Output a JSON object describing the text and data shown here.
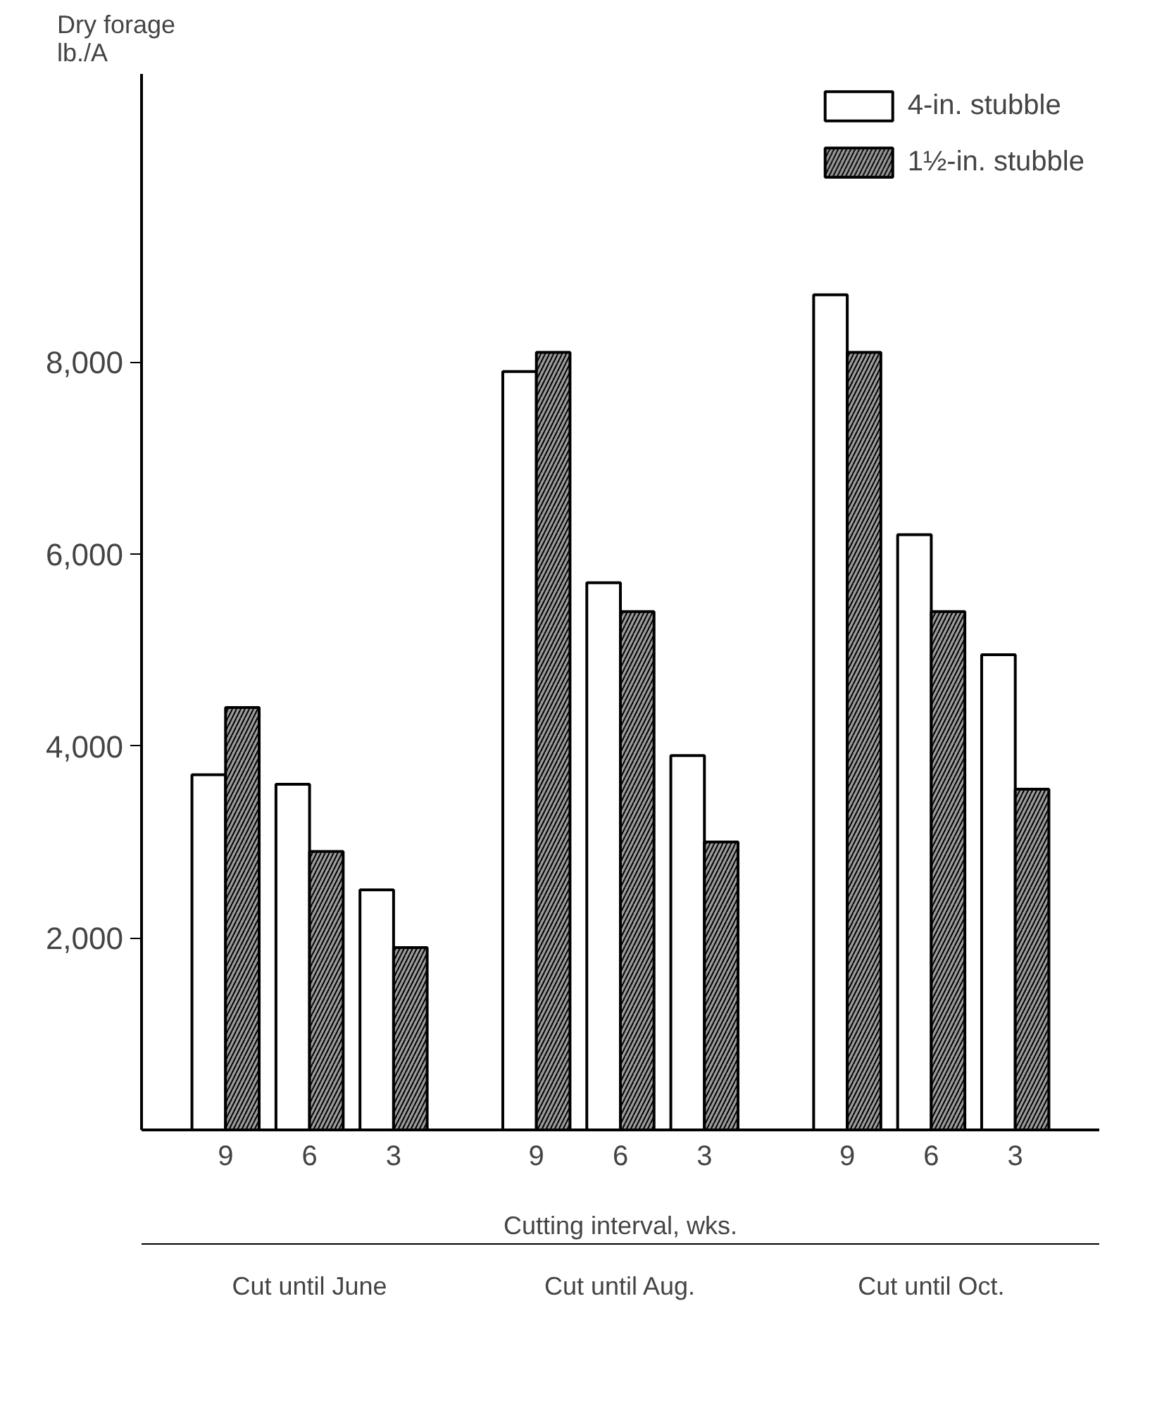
{
  "chart_data": {
    "type": "bar",
    "categories": [
      "9",
      "6",
      "3",
      "9",
      "6",
      "3",
      "9",
      "6",
      "3"
    ],
    "series": [
      {
        "name": "4-in. stubble",
        "color": "#ffffff",
        "values": [
          3700,
          3600,
          2500,
          7900,
          5700,
          3900,
          8700,
          6200,
          4950
        ]
      },
      {
        "name": "1½-in. stubble",
        "color": "#9a9a9a",
        "values": [
          4400,
          2900,
          1900,
          8100,
          5400,
          3000,
          8100,
          5400,
          3550
        ]
      }
    ],
    "ylabel": "Dry forage\nlb./A",
    "xlabel": "Cutting interval, wks.",
    "annotations": [
      "Cut until June",
      "Cut until Aug.",
      "Cut until Oct."
    ],
    "ylim": [
      0,
      11000
    ],
    "yticks": [
      {
        "value": 2000,
        "label": "2,000"
      },
      {
        "value": 4000,
        "label": "4,000"
      },
      {
        "value": 6000,
        "label": "6,000"
      },
      {
        "value": 8000,
        "label": "8,000"
      }
    ],
    "grid": false,
    "legend": "top right"
  }
}
